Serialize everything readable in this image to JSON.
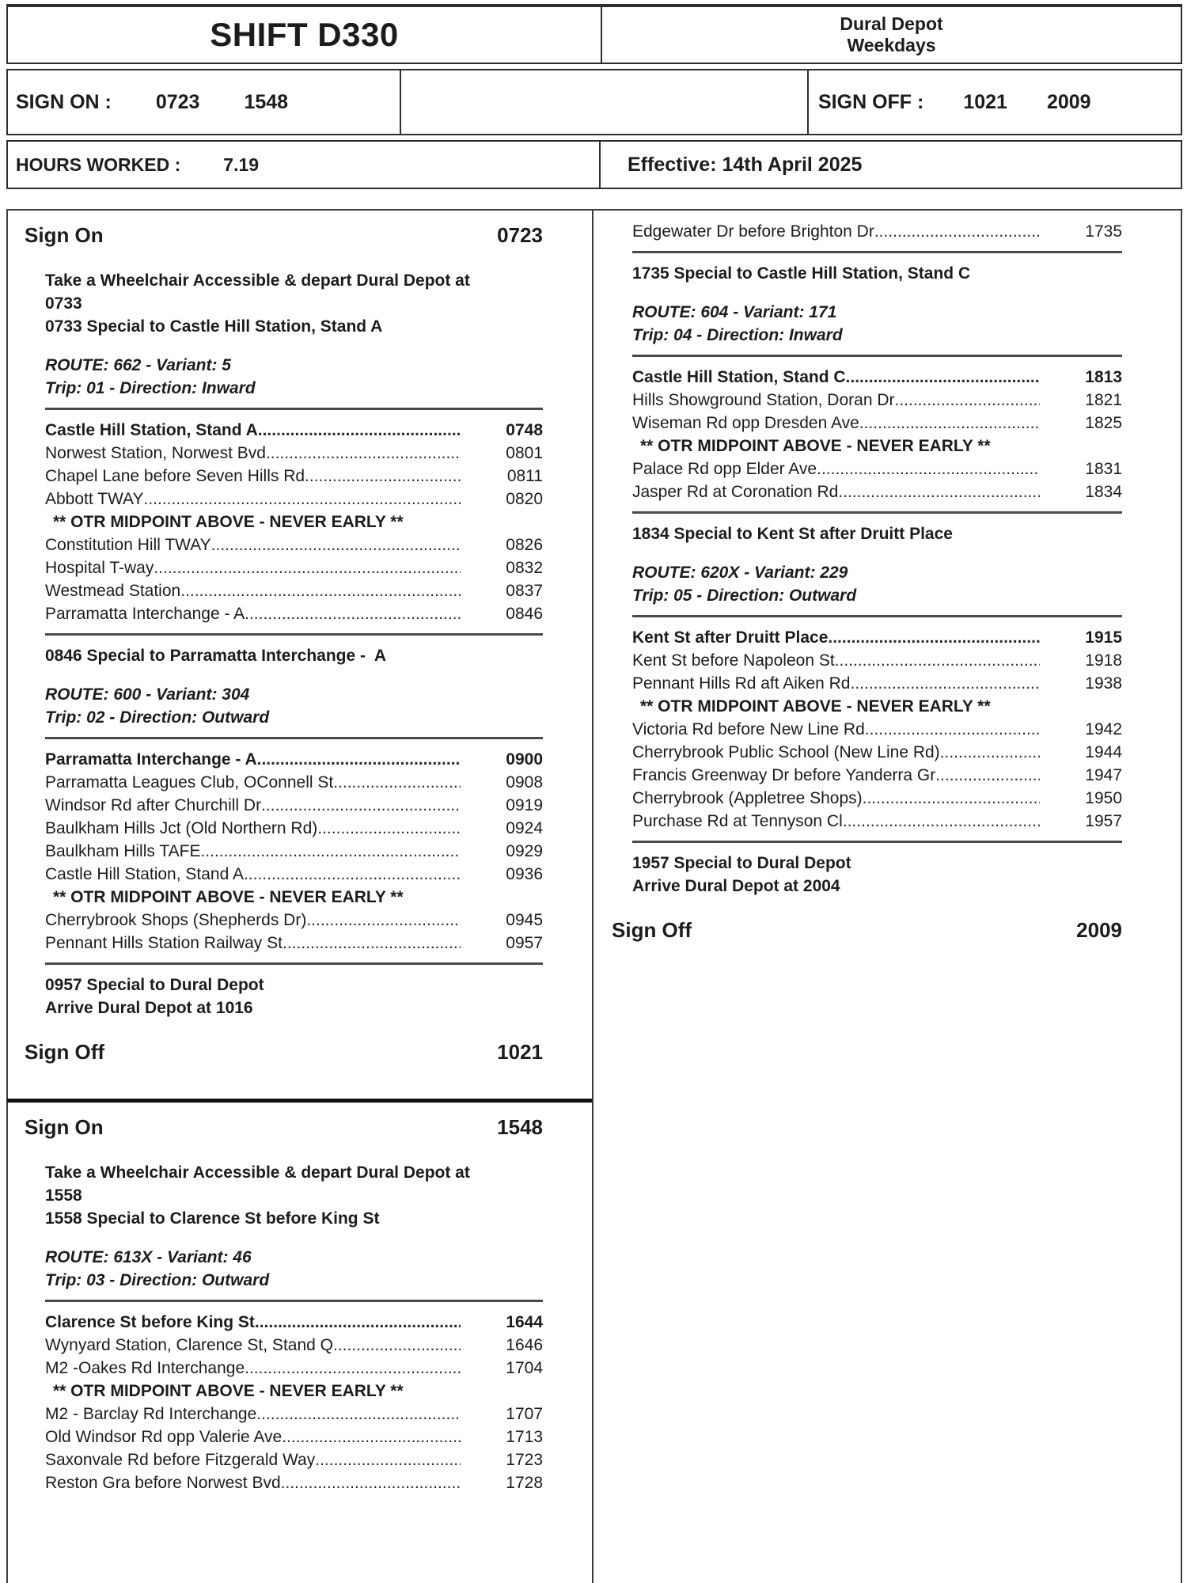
{
  "header": {
    "shift_title": "SHIFT D330",
    "depot_name": "Dural Depot",
    "service_days": "Weekdays",
    "sign_on_label": "SIGN ON :",
    "sign_on_times": [
      "0723",
      "1548"
    ],
    "sign_off_label": "SIGN OFF :",
    "sign_off_times": [
      "1021",
      "2009"
    ],
    "hours_worked_label": "HOURS WORKED :",
    "hours_worked_value": "7.19",
    "effective_date": "Effective: 14th April 2025"
  },
  "left_column": {
    "duty1_lines": [
      {
        "type": "heading",
        "label": "Sign On",
        "time": "0723"
      },
      {
        "type": "gap"
      },
      {
        "type": "note",
        "text": "Take a Wheelchair Accessible & depart Dural Depot at\n0733"
      },
      {
        "type": "note",
        "text": "0733 Special to Castle Hill Station, Stand A"
      },
      {
        "type": "gap"
      },
      {
        "type": "route",
        "text": "ROUTE: 662 - Variant: 5"
      },
      {
        "type": "route",
        "text": "Trip: 01 - Direction: Inward"
      },
      {
        "type": "rule"
      },
      {
        "type": "stop",
        "name": "Castle Hill Station, Stand A",
        "time": "0748",
        "bold": true
      },
      {
        "type": "stop",
        "name": "Norwest Station, Norwest Bvd",
        "time": "0801"
      },
      {
        "type": "stop",
        "name": "Chapel Lane before Seven Hills Rd",
        "time": "0811"
      },
      {
        "type": "stop",
        "name": "Abbott TWAY",
        "time": "0820"
      },
      {
        "type": "otr",
        "text": "** OTR MIDPOINT ABOVE - NEVER EARLY **"
      },
      {
        "type": "stop",
        "name": "Constitution Hill TWAY",
        "time": "0826"
      },
      {
        "type": "stop",
        "name": "Hospital T-way",
        "time": "0832"
      },
      {
        "type": "stop",
        "name": "Westmead Station",
        "time": "0837"
      },
      {
        "type": "stop",
        "name": "Parramatta Interchange -  A",
        "time": "0846"
      },
      {
        "type": "rule"
      },
      {
        "type": "note",
        "text": "0846 Special to Parramatta Interchange -  A"
      },
      {
        "type": "gap"
      },
      {
        "type": "route",
        "text": "ROUTE: 600 - Variant: 304"
      },
      {
        "type": "route",
        "text": "Trip: 02 - Direction: Outward"
      },
      {
        "type": "rule"
      },
      {
        "type": "stop",
        "name": "Parramatta Interchange -  A",
        "time": "0900",
        "bold": true
      },
      {
        "type": "stop",
        "name": "Parramatta Leagues Club, OConnell St",
        "time": "0908"
      },
      {
        "type": "stop",
        "name": "Windsor Rd after Churchill Dr",
        "time": "0919"
      },
      {
        "type": "stop",
        "name": "Baulkham Hills Jct (Old Northern Rd)",
        "time": "0924"
      },
      {
        "type": "stop",
        "name": "Baulkham Hills TAFE",
        "time": "0929"
      },
      {
        "type": "stop",
        "name": "Castle Hill Station, Stand A",
        "time": "0936"
      },
      {
        "type": "otr",
        "text": "** OTR MIDPOINT ABOVE - NEVER EARLY **"
      },
      {
        "type": "stop",
        "name": "Cherrybrook Shops (Shepherds Dr)",
        "time": "0945"
      },
      {
        "type": "stop",
        "name": "Pennant Hills Station Railway St",
        "time": "0957"
      },
      {
        "type": "rule"
      },
      {
        "type": "note",
        "text": "0957 Special to Dural Depot"
      },
      {
        "type": "note",
        "text": "Arrive Dural Depot at 1016"
      },
      {
        "type": "gap"
      },
      {
        "type": "heading",
        "label": "Sign Off",
        "time": "1021"
      }
    ],
    "duty2_lines": [
      {
        "type": "heading",
        "label": "Sign On",
        "time": "1548"
      },
      {
        "type": "gap"
      },
      {
        "type": "note",
        "text": "Take a Wheelchair Accessible & depart Dural Depot at\n1558"
      },
      {
        "type": "note",
        "text": "1558 Special to Clarence St before King St"
      },
      {
        "type": "gap"
      },
      {
        "type": "route",
        "text": "ROUTE: 613X - Variant: 46"
      },
      {
        "type": "route",
        "text": "Trip: 03 - Direction: Outward"
      },
      {
        "type": "rule"
      },
      {
        "type": "stop",
        "name": "Clarence St before King St",
        "time": "1644",
        "bold": true
      },
      {
        "type": "stop",
        "name": "Wynyard Station, Clarence St, Stand Q",
        "time": "1646"
      },
      {
        "type": "stop",
        "name": "M2 -Oakes Rd Interchange",
        "time": "1704"
      },
      {
        "type": "otr",
        "text": "** OTR MIDPOINT ABOVE - NEVER EARLY **"
      },
      {
        "type": "stop",
        "name": "M2 - Barclay Rd Interchange",
        "time": "1707"
      },
      {
        "type": "stop",
        "name": "Old Windsor Rd opp Valerie Ave",
        "time": "1713"
      },
      {
        "type": "stop",
        "name": "Saxonvale Rd before Fitzgerald Way",
        "time": "1723"
      },
      {
        "type": "stop",
        "name": "Reston Gra before Norwest Bvd",
        "time": "1728"
      }
    ]
  },
  "right_column": {
    "lines": [
      {
        "type": "stop",
        "name": "Edgewater Dr before Brighton Dr",
        "time": "1735"
      },
      {
        "type": "rule"
      },
      {
        "type": "note",
        "text": "1735 Special to Castle Hill Station, Stand C"
      },
      {
        "type": "gap"
      },
      {
        "type": "route",
        "text": "ROUTE: 604 - Variant: 171"
      },
      {
        "type": "route",
        "text": "Trip: 04 - Direction: Inward"
      },
      {
        "type": "rule"
      },
      {
        "type": "stop",
        "name": "Castle Hill Station, Stand C",
        "time": "1813",
        "bold": true
      },
      {
        "type": "stop",
        "name": "Hills Showground Station, Doran Dr",
        "time": "1821"
      },
      {
        "type": "stop",
        "name": "Wiseman Rd opp Dresden Ave",
        "time": "1825"
      },
      {
        "type": "otr",
        "text": "** OTR MIDPOINT ABOVE - NEVER EARLY **"
      },
      {
        "type": "stop",
        "name": "Palace Rd opp Elder Ave",
        "time": "1831"
      },
      {
        "type": "stop",
        "name": "Jasper Rd at Coronation Rd",
        "time": "1834"
      },
      {
        "type": "rule"
      },
      {
        "type": "note",
        "text": "1834 Special to Kent St after Druitt Place"
      },
      {
        "type": "gap"
      },
      {
        "type": "route",
        "text": "ROUTE: 620X - Variant: 229"
      },
      {
        "type": "route",
        "text": "Trip: 05 - Direction: Outward"
      },
      {
        "type": "rule"
      },
      {
        "type": "stop",
        "name": "Kent St after Druitt Place",
        "time": "1915",
        "bold": true
      },
      {
        "type": "stop",
        "name": "Kent St before Napoleon St",
        "time": "1918"
      },
      {
        "type": "stop",
        "name": "Pennant Hills Rd aft Aiken Rd",
        "time": "1938"
      },
      {
        "type": "otr",
        "text": "** OTR MIDPOINT ABOVE - NEVER EARLY **"
      },
      {
        "type": "stop",
        "name": "Victoria Rd before New Line Rd",
        "time": "1942"
      },
      {
        "type": "stop",
        "name": "Cherrybrook Public School (New Line Rd)",
        "time": "1944"
      },
      {
        "type": "stop",
        "name": "Francis Greenway Dr before Yanderra Gr",
        "time": "1947"
      },
      {
        "type": "stop",
        "name": "Cherrybrook (Appletree Shops)",
        "time": "1950"
      },
      {
        "type": "stop",
        "name": "Purchase Rd at Tennyson Cl",
        "time": "1957"
      },
      {
        "type": "rule"
      },
      {
        "type": "note",
        "text": "1957 Special to Dural Depot"
      },
      {
        "type": "note",
        "text": "Arrive Dural Depot at 2004"
      },
      {
        "type": "gap"
      },
      {
        "type": "heading",
        "label": "Sign Off",
        "time": "2009"
      }
    ]
  }
}
